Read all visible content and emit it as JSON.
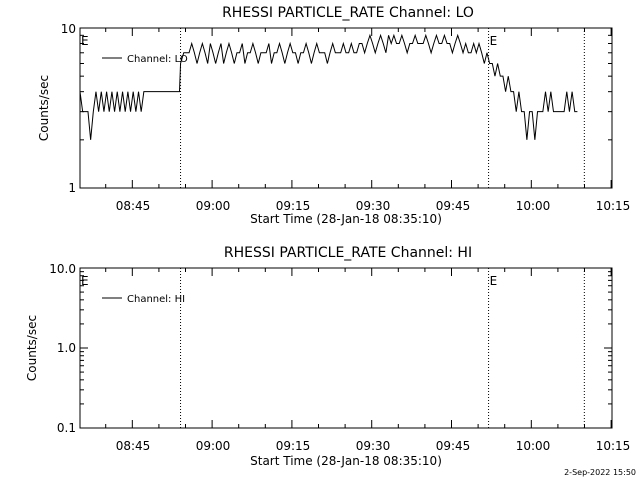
{
  "footer": {
    "timestamp": "2-Sep-2022 15:50"
  },
  "chart_data": [
    {
      "type": "line",
      "title": "RHESSI PARTICLE_RATE Channel: LO",
      "xlabel": "Start Time (28-Jan-18 08:35:10)",
      "ylabel": "Counts/sec",
      "yscale": "log",
      "ylim": [
        1,
        10
      ],
      "ytick_labels": [
        "1",
        "10"
      ],
      "xlim_minutes": [
        0,
        100
      ],
      "xtick_labels": [
        "08:45",
        "09:00",
        "09:15",
        "09:30",
        "09:45",
        "10:00",
        "10:15"
      ],
      "vlines_minutes": [
        18.9,
        76.8,
        94.8
      ],
      "markers": [
        {
          "text": "E",
          "minute": 0
        },
        {
          "text": "E",
          "minute": 76.8
        }
      ],
      "legend": {
        "label": "Channel: LO",
        "placement": "top-left"
      },
      "series": [
        {
          "name": "Channel: LO",
          "x_minutes_since_start": [
            0,
            0.5,
            1,
            1.5,
            2,
            2.5,
            3,
            3.5,
            4,
            4.5,
            5,
            5.5,
            6,
            6.5,
            7,
            7.5,
            8,
            8.5,
            9,
            9.5,
            10,
            10.5,
            11,
            11.5,
            12,
            12.5,
            13,
            16,
            18.7,
            18.9,
            19.5,
            20,
            20.5,
            21,
            21.5,
            22,
            22.5,
            23,
            23.5,
            24,
            24.5,
            25,
            25.5,
            26,
            26.5,
            27,
            27.5,
            28,
            28.5,
            29,
            29.5,
            30,
            30.5,
            31,
            31.5,
            32,
            32.5,
            33,
            33.5,
            34,
            34.5,
            35,
            35.5,
            36,
            36.5,
            37,
            37.5,
            38,
            38.5,
            39,
            39.5,
            40,
            40.5,
            41,
            41.5,
            42,
            42.5,
            43,
            43.5,
            44,
            44.5,
            45,
            45.5,
            46,
            46.5,
            47,
            47.5,
            48,
            48.5,
            49,
            49.5,
            50,
            50.5,
            51,
            51.5,
            52,
            52.5,
            53,
            53.5,
            54,
            54.5,
            55,
            55.5,
            56,
            56.5,
            57,
            57.5,
            58,
            58.5,
            59,
            59.5,
            60,
            60.5,
            61,
            61.5,
            62,
            62.5,
            63,
            63.5,
            64,
            64.5,
            65,
            65.5,
            66,
            66.5,
            67,
            67.5,
            68,
            68.5,
            69,
            69.5,
            70,
            70.5,
            71,
            71.5,
            72,
            72.5,
            73,
            73.5,
            74,
            74.5,
            75,
            75.5,
            76,
            76.5,
            77,
            77.5,
            78,
            78.5,
            79,
            79.5,
            80,
            80.5,
            81,
            81.5,
            82,
            82.5,
            83,
            83.5,
            84,
            84.5,
            85,
            85.5,
            86,
            86.5,
            87,
            87.5,
            88,
            88.5,
            89,
            89.5,
            90,
            90.5,
            91,
            91.5,
            92,
            92.5,
            93,
            93.5,
            94,
            94.5,
            95
          ],
          "values": [
            4,
            3,
            3,
            3,
            2,
            3,
            4,
            3,
            4,
            3,
            4,
            3,
            4,
            3,
            4,
            3,
            4,
            3,
            4,
            3,
            4,
            3,
            4,
            3,
            4,
            4,
            4,
            4,
            4,
            6,
            7,
            7,
            7,
            8,
            7,
            6,
            7,
            8,
            7,
            6,
            8,
            7,
            6,
            7,
            8,
            6,
            7,
            8,
            7,
            6,
            7,
            7,
            8,
            6,
            7,
            7,
            8,
            7,
            6,
            7,
            7,
            7,
            8,
            6,
            7,
            7,
            8,
            7,
            6,
            7,
            8,
            7,
            7,
            6,
            7,
            7,
            8,
            7,
            6,
            7,
            8,
            7,
            7,
            7,
            6,
            7,
            8,
            7,
            7,
            7,
            8,
            7,
            7,
            8,
            7,
            7,
            8,
            8,
            7,
            8,
            9,
            8,
            7,
            8,
            9,
            8,
            7,
            9,
            8,
            9,
            8,
            8,
            9,
            8,
            7,
            8,
            8,
            9,
            8,
            8,
            8,
            9,
            8,
            7,
            8,
            9,
            8,
            8,
            9,
            8,
            8,
            7,
            8,
            9,
            8,
            7,
            8,
            7,
            7,
            8,
            7,
            8,
            7,
            6,
            7,
            6,
            6,
            5,
            6,
            5,
            5,
            4,
            5,
            4,
            4,
            3,
            4,
            3,
            3,
            2,
            3,
            3,
            2,
            3,
            3,
            3,
            4,
            3,
            4,
            3,
            3,
            3,
            3,
            3,
            4,
            3,
            4,
            3,
            3
          ]
        }
      ]
    },
    {
      "type": "line",
      "title": "RHESSI PARTICLE_RATE Channel: HI",
      "xlabel": "Start Time (28-Jan-18 08:35:10)",
      "ylabel": "Counts/sec",
      "yscale": "log",
      "ylim": [
        0.1,
        10
      ],
      "ytick_labels": [
        "0.1",
        "1.0",
        "10.0"
      ],
      "xlim_minutes": [
        0,
        100
      ],
      "xtick_labels": [
        "08:45",
        "09:00",
        "09:15",
        "09:30",
        "09:45",
        "10:00",
        "10:15"
      ],
      "vlines_minutes": [
        18.9,
        76.8,
        94.8
      ],
      "markers": [
        {
          "text": "E",
          "minute": 0
        },
        {
          "text": "E",
          "minute": 76.8
        }
      ],
      "legend": {
        "label": "Channel: HI",
        "placement": "top-left"
      },
      "series": [
        {
          "name": "Channel: HI",
          "x_minutes_since_start": [],
          "values": []
        }
      ]
    }
  ]
}
